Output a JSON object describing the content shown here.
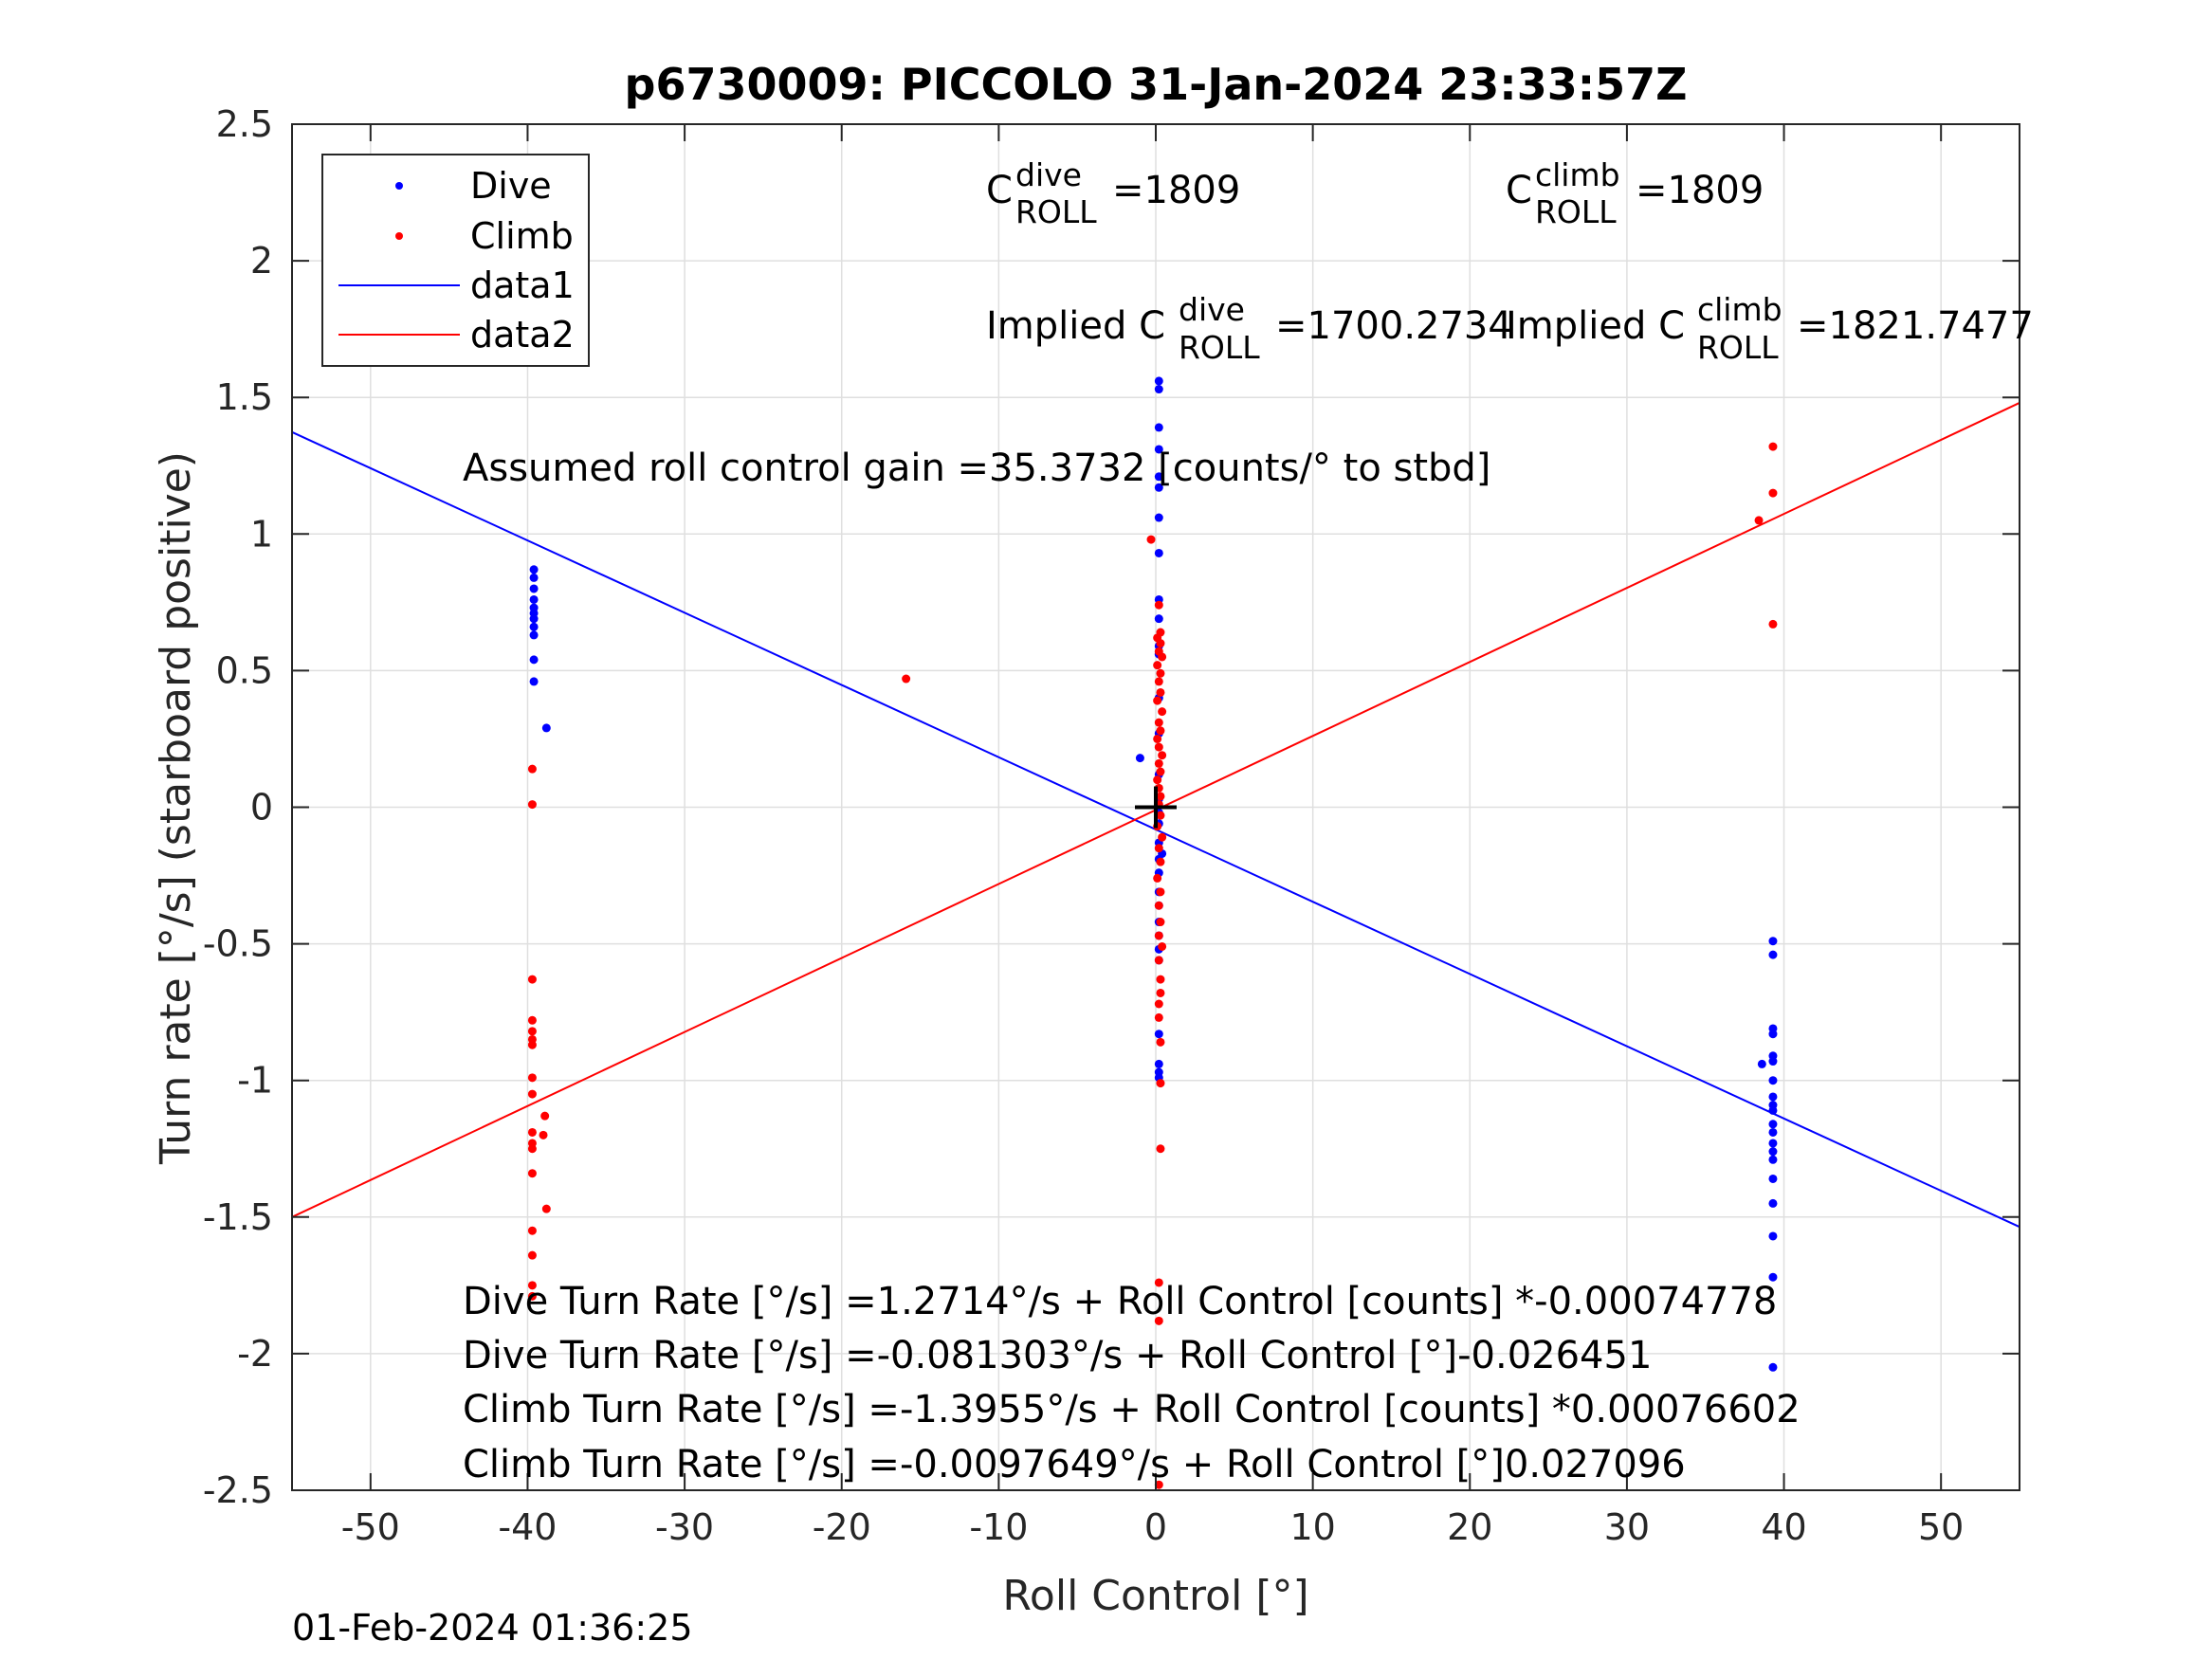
{
  "chart_data": {
    "type": "scatter",
    "title": "p6730009: PICCOLO 31-Jan-2024 23:33:57Z",
    "xlabel": "Roll Control [°]",
    "ylabel": "Turn rate [°/s] (starboard positive)",
    "xlim": [
      -55,
      55
    ],
    "ylim": [
      -2.5,
      2.5
    ],
    "xticks": [
      "-50",
      "-40",
      "-30",
      "-20",
      "-10",
      "0",
      "10",
      "20",
      "30",
      "40",
      "50"
    ],
    "yticks": [
      "2.5",
      "2",
      "1.5",
      "1",
      "0.5",
      "0",
      "-0.5",
      "-1",
      "-1.5",
      "-2",
      "-2.5"
    ],
    "grid": true,
    "legend_position": "top-left",
    "legend": [
      {
        "label": "Dive",
        "kind": "marker",
        "color": "#0000ff"
      },
      {
        "label": "Climb",
        "kind": "marker",
        "color": "#ff0000"
      },
      {
        "label": "data1",
        "kind": "line",
        "color": "#0000ff"
      },
      {
        "label": "data2",
        "kind": "line",
        "color": "#ff0000"
      }
    ],
    "series": [
      {
        "name": "Dive",
        "color": "#0000ff",
        "points": [
          [
            -39.6,
            0.87
          ],
          [
            -39.6,
            0.84
          ],
          [
            -39.6,
            0.8
          ],
          [
            -39.6,
            0.76
          ],
          [
            -39.6,
            0.73
          ],
          [
            -39.6,
            0.71
          ],
          [
            -39.6,
            0.69
          ],
          [
            -39.6,
            0.66
          ],
          [
            -39.6,
            0.63
          ],
          [
            -39.6,
            0.54
          ],
          [
            -39.6,
            0.46
          ],
          [
            -38.8,
            0.29
          ],
          [
            0.2,
            1.56
          ],
          [
            0.2,
            1.53
          ],
          [
            0.2,
            1.39
          ],
          [
            0.2,
            1.31
          ],
          [
            0.2,
            1.21
          ],
          [
            0.2,
            1.17
          ],
          [
            0.2,
            1.06
          ],
          [
            0.2,
            0.93
          ],
          [
            0.2,
            0.76
          ],
          [
            0.2,
            0.69
          ],
          [
            0.2,
            0.59
          ],
          [
            0.2,
            0.56
          ],
          [
            0.2,
            0.4
          ],
          [
            0.2,
            0.27
          ],
          [
            0.2,
            0.12
          ],
          [
            0.2,
            0.03
          ],
          [
            0.2,
            -0.02
          ],
          [
            0.2,
            -0.06
          ],
          [
            0.2,
            -0.13
          ],
          [
            0.2,
            -0.19
          ],
          [
            0.2,
            -0.24
          ],
          [
            0.2,
            -0.31
          ],
          [
            0.2,
            -0.36
          ],
          [
            0.2,
            -0.42
          ],
          [
            0.2,
            -0.47
          ],
          [
            0.2,
            -0.52
          ],
          [
            0.2,
            -0.56
          ],
          [
            0.2,
            -0.83
          ],
          [
            0.2,
            -0.94
          ],
          [
            0.2,
            -0.97
          ],
          [
            0.2,
            -0.99
          ],
          [
            -1.0,
            0.18
          ],
          [
            0.4,
            -0.17
          ],
          [
            39.3,
            -0.49
          ],
          [
            39.3,
            -0.54
          ],
          [
            39.3,
            -0.81
          ],
          [
            39.3,
            -0.83
          ],
          [
            39.3,
            -0.91
          ],
          [
            39.3,
            -0.93
          ],
          [
            38.6,
            -0.94
          ],
          [
            39.3,
            -1.0
          ],
          [
            39.3,
            -1.06
          ],
          [
            39.3,
            -1.09
          ],
          [
            39.3,
            -1.11
          ],
          [
            39.3,
            -1.16
          ],
          [
            39.3,
            -1.19
          ],
          [
            39.3,
            -1.23
          ],
          [
            39.3,
            -1.26
          ],
          [
            39.3,
            -1.29
          ],
          [
            39.3,
            -1.36
          ],
          [
            39.3,
            -1.45
          ],
          [
            39.3,
            -1.57
          ],
          [
            39.3,
            -1.72
          ],
          [
            39.3,
            -2.05
          ]
        ]
      },
      {
        "name": "Climb",
        "color": "#ff0000",
        "points": [
          [
            -39.7,
            0.14
          ],
          [
            -39.7,
            0.01
          ],
          [
            -39.7,
            -0.63
          ],
          [
            -39.7,
            -0.78
          ],
          [
            -39.7,
            -0.82
          ],
          [
            -39.7,
            -0.85
          ],
          [
            -39.7,
            -0.87
          ],
          [
            -39.7,
            -0.99
          ],
          [
            -39.7,
            -1.05
          ],
          [
            -39.7,
            -1.19
          ],
          [
            -39.7,
            -1.23
          ],
          [
            -39.7,
            -1.25
          ],
          [
            -39.7,
            -1.34
          ],
          [
            -39.7,
            -1.55
          ],
          [
            -39.7,
            -1.64
          ],
          [
            -39.7,
            -1.75
          ],
          [
            -39.7,
            -1.79
          ],
          [
            -38.9,
            -1.13
          ],
          [
            -39.0,
            -1.2
          ],
          [
            -38.8,
            -1.47
          ],
          [
            -15.9,
            0.47
          ],
          [
            -0.3,
            0.98
          ],
          [
            0.2,
            0.74
          ],
          [
            0.3,
            0.64
          ],
          [
            0.1,
            0.62
          ],
          [
            0.3,
            0.6
          ],
          [
            0.2,
            0.57
          ],
          [
            0.4,
            0.55
          ],
          [
            0.1,
            0.52
          ],
          [
            0.3,
            0.49
          ],
          [
            0.2,
            0.46
          ],
          [
            0.3,
            0.42
          ],
          [
            0.1,
            0.39
          ],
          [
            0.4,
            0.35
          ],
          [
            0.2,
            0.31
          ],
          [
            0.3,
            0.28
          ],
          [
            0.1,
            0.25
          ],
          [
            0.2,
            0.22
          ],
          [
            0.4,
            0.19
          ],
          [
            0.2,
            0.16
          ],
          [
            0.3,
            0.13
          ],
          [
            0.1,
            0.1
          ],
          [
            0.2,
            0.07
          ],
          [
            0.3,
            0.04
          ],
          [
            0.2,
            0.01
          ],
          [
            0.3,
            -0.03
          ],
          [
            0.1,
            -0.07
          ],
          [
            0.4,
            -0.11
          ],
          [
            0.2,
            -0.15
          ],
          [
            0.3,
            -0.2
          ],
          [
            0.1,
            -0.26
          ],
          [
            0.3,
            -0.31
          ],
          [
            0.2,
            -0.36
          ],
          [
            0.3,
            -0.42
          ],
          [
            0.2,
            -0.47
          ],
          [
            0.4,
            -0.51
          ],
          [
            0.2,
            -0.56
          ],
          [
            0.3,
            -0.63
          ],
          [
            0.3,
            -0.68
          ],
          [
            0.2,
            -0.72
          ],
          [
            0.2,
            -0.77
          ],
          [
            0.3,
            -0.86
          ],
          [
            0.3,
            -1.01
          ],
          [
            0.3,
            -1.25
          ],
          [
            0.2,
            -1.74
          ],
          [
            0.2,
            -1.88
          ],
          [
            0.2,
            -2.48
          ],
          [
            38.4,
            1.05
          ],
          [
            39.3,
            1.32
          ],
          [
            39.3,
            1.15
          ],
          [
            39.3,
            0.67
          ]
        ]
      },
      {
        "name": "data1",
        "color": "#0000ff",
        "kind": "line",
        "points": [
          [
            -55,
            1.373
          ],
          [
            55,
            -1.536
          ]
        ]
      },
      {
        "name": "data2",
        "color": "#ff0000",
        "kind": "line",
        "points": [
          [
            -55,
            -1.5
          ],
          [
            55,
            1.48
          ]
        ]
      }
    ],
    "marker": {
      "kind": "plus",
      "color": "#000000",
      "point": [
        0,
        0
      ]
    },
    "annotations": {
      "c_dive_prefix": "C",
      "c_dive_sup": "dive",
      "c_dive_sub": "ROLL",
      "c_dive_value": "=1809",
      "c_climb_prefix": "C",
      "c_climb_sup": "climb",
      "c_climb_sub": "ROLL",
      "c_climb_value": "=1809",
      "implied_dive_prefix": "Implied C",
      "implied_dive_sup": "dive",
      "implied_dive_sub": "ROLL",
      "implied_dive_value": "=1700.2734",
      "implied_climb_prefix": "Implied C",
      "implied_climb_sup": "climb",
      "implied_climb_sub": "ROLL",
      "implied_climb_value": "=1821.7477",
      "gain": "Assumed roll control gain =35.3732 [counts/° to stbd]",
      "fit1": "Dive Turn Rate [°/s] =1.2714°/s + Roll Control [counts] *-0.00074778",
      "fit2": "Dive Turn Rate [°/s] =-0.081303°/s + Roll Control [°]-0.026451",
      "fit3": "Climb Turn Rate [°/s] =-1.3955°/s + Roll Control [counts] *0.00076602",
      "fit4": "Climb Turn Rate [°/s] =-0.0097649°/s + Roll Control [°]0.027096"
    },
    "timestamp": "01-Feb-2024 01:36:25"
  }
}
